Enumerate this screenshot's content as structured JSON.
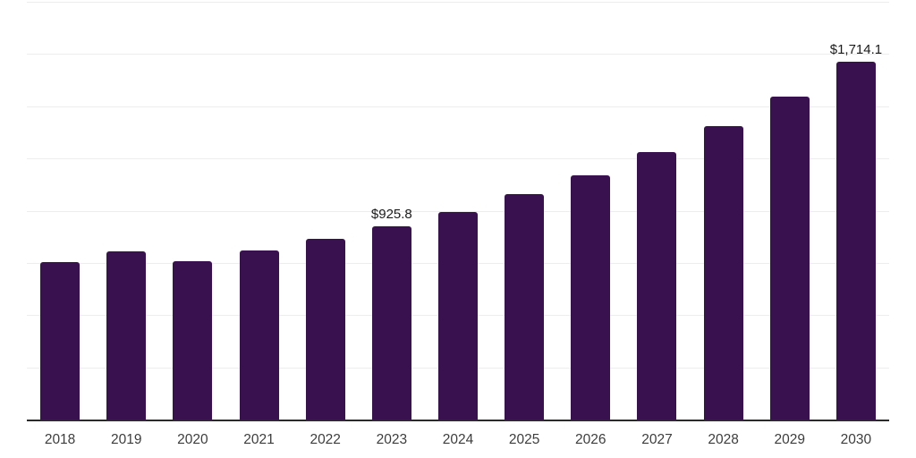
{
  "chart_data": {
    "type": "bar",
    "title": "",
    "xlabel": "",
    "ylabel": "",
    "categories": [
      "2018",
      "2019",
      "2020",
      "2021",
      "2022",
      "2023",
      "2024",
      "2025",
      "2026",
      "2027",
      "2028",
      "2029",
      "2030"
    ],
    "values": [
      753,
      806,
      759,
      811,
      866,
      925.8,
      995,
      1078,
      1170,
      1280,
      1404,
      1548,
      1714.1
    ],
    "data_labels": [
      "",
      "",
      "",
      "",
      "",
      "$925.8",
      "",
      "",
      "",
      "",
      "",
      "",
      "$1,714.1"
    ],
    "ylim": [
      0,
      2000
    ],
    "grid_interval": 250,
    "grid": "horizontal",
    "y_tick_labels_visible": false,
    "legend": "none",
    "colors": {
      "bar": "#38114E",
      "grid_line": "#ededed",
      "axis_line": "#2b2b2b",
      "tick_label": "#3d3d3d",
      "data_label": "#1a1a1a",
      "background": "#ffffff"
    }
  }
}
